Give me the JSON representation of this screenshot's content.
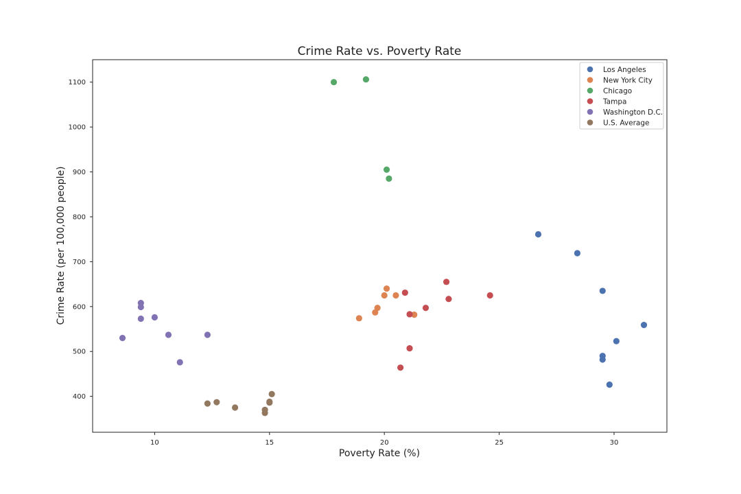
{
  "chart_data": {
    "type": "scatter",
    "title": "Crime Rate vs. Poverty Rate",
    "xlabel": "Poverty Rate (%)",
    "ylabel": "Crime Rate (per 100,000 people)",
    "xlim": [
      7.3,
      32.3
    ],
    "ylim": [
      320,
      1150
    ],
    "xticks": [
      10,
      15,
      20,
      25,
      30
    ],
    "yticks": [
      400,
      500,
      600,
      700,
      800,
      900,
      1000,
      1100
    ],
    "grid": false,
    "legend_position": "top-right",
    "series": [
      {
        "name": "Los Angeles",
        "color": "#4c72b0",
        "points": [
          [
            26.7,
            761
          ],
          [
            28.4,
            719
          ],
          [
            29.5,
            635
          ],
          [
            31.3,
            559
          ],
          [
            30.1,
            523
          ],
          [
            29.5,
            490
          ],
          [
            29.5,
            482
          ],
          [
            29.8,
            426
          ]
        ]
      },
      {
        "name": "New York City",
        "color": "#dd8452",
        "points": [
          [
            20.1,
            640
          ],
          [
            20.0,
            625
          ],
          [
            20.5,
            625
          ],
          [
            19.7,
            597
          ],
          [
            19.6,
            587
          ],
          [
            21.3,
            582
          ],
          [
            18.9,
            574
          ]
        ]
      },
      {
        "name": "Chicago",
        "color": "#55a868",
        "points": [
          [
            17.8,
            1100
          ],
          [
            19.2,
            1106
          ],
          [
            20.1,
            905
          ],
          [
            20.2,
            885
          ]
        ]
      },
      {
        "name": "Tampa",
        "color": "#c44e52",
        "points": [
          [
            22.7,
            655
          ],
          [
            20.9,
            631
          ],
          [
            22.8,
            617
          ],
          [
            24.6,
            625
          ],
          [
            21.8,
            597
          ],
          [
            21.1,
            583
          ],
          [
            21.1,
            507
          ],
          [
            20.7,
            464
          ]
        ]
      },
      {
        "name": "Washington D.C.",
        "color": "#8172b3",
        "points": [
          [
            9.4,
            608
          ],
          [
            9.4,
            599
          ],
          [
            9.4,
            573
          ],
          [
            10.0,
            576
          ],
          [
            8.6,
            530
          ],
          [
            10.6,
            537
          ],
          [
            12.3,
            537
          ],
          [
            11.1,
            476
          ]
        ]
      },
      {
        "name": "U.S. Average",
        "color": "#937860",
        "points": [
          [
            15.1,
            405
          ],
          [
            15.0,
            388
          ],
          [
            15.0,
            386
          ],
          [
            12.3,
            384
          ],
          [
            12.7,
            387
          ],
          [
            13.5,
            375
          ],
          [
            14.8,
            370
          ],
          [
            14.8,
            363
          ]
        ]
      }
    ]
  }
}
